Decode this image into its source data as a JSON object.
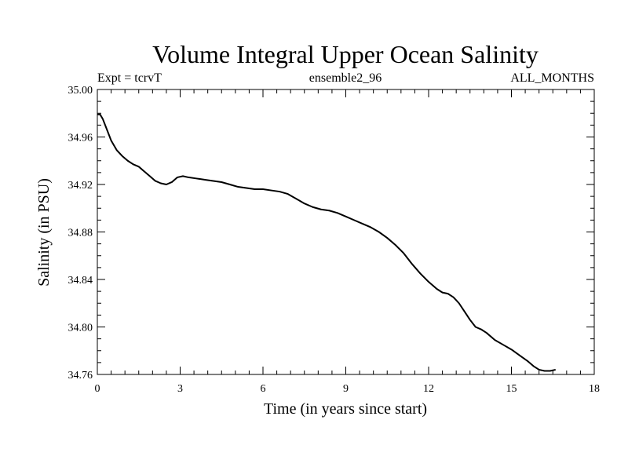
{
  "chart_data": {
    "type": "line",
    "title": "Volume Integral Upper Ocean Salinity",
    "header_left": "Expt = tcrvT",
    "header_center": "ensemble2_96",
    "header_right": "ALL_MONTHS",
    "xlabel": "Time (in years since start)",
    "ylabel": "Salinity (in PSU)",
    "xlim": [
      0,
      18
    ],
    "ylim": [
      34.76,
      35.0
    ],
    "x_ticks": [
      "0",
      "3",
      "6",
      "9",
      "12",
      "15",
      "18"
    ],
    "y_ticks": [
      "34.76",
      "34.80",
      "34.84",
      "34.88",
      "34.92",
      "34.96",
      "35.00"
    ],
    "x_tick_values": [
      0,
      3,
      6,
      9,
      12,
      15,
      18
    ],
    "y_tick_values": [
      34.76,
      34.8,
      34.84,
      34.88,
      34.92,
      34.96,
      35.0
    ],
    "grid": false,
    "series": [
      {
        "color": "#000000",
        "x": [
          0,
          0.1,
          0.2,
          0.35,
          0.5,
          0.7,
          0.9,
          1.1,
          1.3,
          1.5,
          1.7,
          1.9,
          2.1,
          2.3,
          2.5,
          2.7,
          2.9,
          3.1,
          3.3,
          3.6,
          3.9,
          4.2,
          4.5,
          4.8,
          5.1,
          5.4,
          5.7,
          6.0,
          6.3,
          6.6,
          6.9,
          7.2,
          7.5,
          7.8,
          8.1,
          8.4,
          8.7,
          9.0,
          9.3,
          9.6,
          9.9,
          10.2,
          10.5,
          10.8,
          11.1,
          11.4,
          11.7,
          12.0,
          12.3,
          12.5,
          12.7,
          12.9,
          13.1,
          13.3,
          13.5,
          13.7,
          13.9,
          14.1,
          14.4,
          14.7,
          15.0,
          15.3,
          15.6,
          15.8,
          16.0,
          16.2,
          16.4,
          16.6
        ],
        "values": [
          34.979,
          34.979,
          34.975,
          34.966,
          34.957,
          34.949,
          34.944,
          34.94,
          34.937,
          34.935,
          34.931,
          34.927,
          34.923,
          34.921,
          34.92,
          34.922,
          34.926,
          34.927,
          34.926,
          34.925,
          34.924,
          34.923,
          34.922,
          34.92,
          34.918,
          34.917,
          34.916,
          34.916,
          34.915,
          34.914,
          34.912,
          34.908,
          34.904,
          34.901,
          34.899,
          34.898,
          34.896,
          34.893,
          34.89,
          34.887,
          34.884,
          34.88,
          34.875,
          34.869,
          34.862,
          34.853,
          34.845,
          34.838,
          34.832,
          34.829,
          34.828,
          34.825,
          34.82,
          34.813,
          34.806,
          34.8,
          34.798,
          34.795,
          34.789,
          34.785,
          34.781,
          34.776,
          34.771,
          34.767,
          34.764,
          34.763,
          34.763,
          34.764
        ]
      }
    ]
  }
}
